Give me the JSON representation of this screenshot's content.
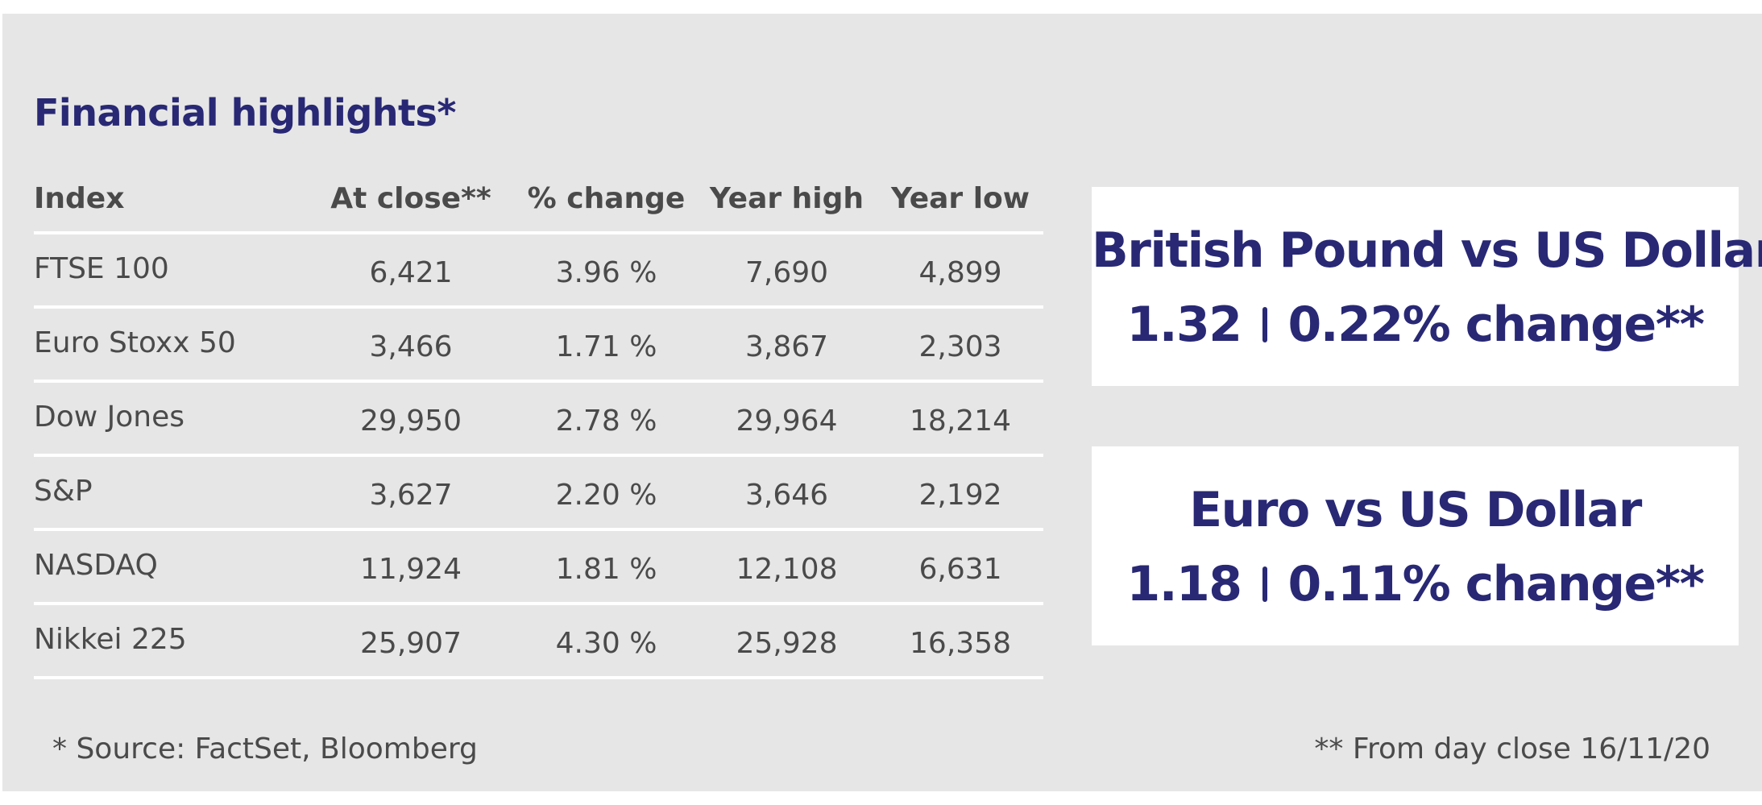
{
  "title": "Financial highlights*",
  "table": {
    "headers": [
      "Index",
      "At close**",
      "% change",
      "Year high",
      "Year low"
    ],
    "rows": [
      [
        "FTSE 100",
        "6,421",
        "3.96 %",
        "7,690",
        "4,899"
      ],
      [
        "Euro Stoxx 50",
        "3,466",
        "1.71 %",
        "3,867",
        "2,303"
      ],
      [
        "Dow Jones",
        "29,950",
        "2.78 %",
        "29,964",
        "18,214"
      ],
      [
        "S&P",
        "3,627",
        "2.20 %",
        "3,646",
        "2,192"
      ],
      [
        "NASDAQ",
        "11,924",
        "1.81 %",
        "12,108",
        "6,631"
      ],
      [
        "Nikkei 225",
        "25,907",
        "4.30 %",
        "25,928",
        "16,358"
      ]
    ]
  },
  "fx": [
    {
      "title": "British Pound vs US Dollar",
      "rate": "1.32",
      "change": "0.22% change**"
    },
    {
      "title": "Euro vs US Dollar",
      "rate": "1.18",
      "change": "0.11% change**"
    }
  ],
  "footnotes": {
    "source": "* Source: FactSet, Bloomberg",
    "close": "** From day close 16/11/20"
  },
  "colors": {
    "accent": "#282875",
    "panel_background": "#e6e6e6",
    "text": "#4a4a4a",
    "card_background": "#ffffff"
  }
}
